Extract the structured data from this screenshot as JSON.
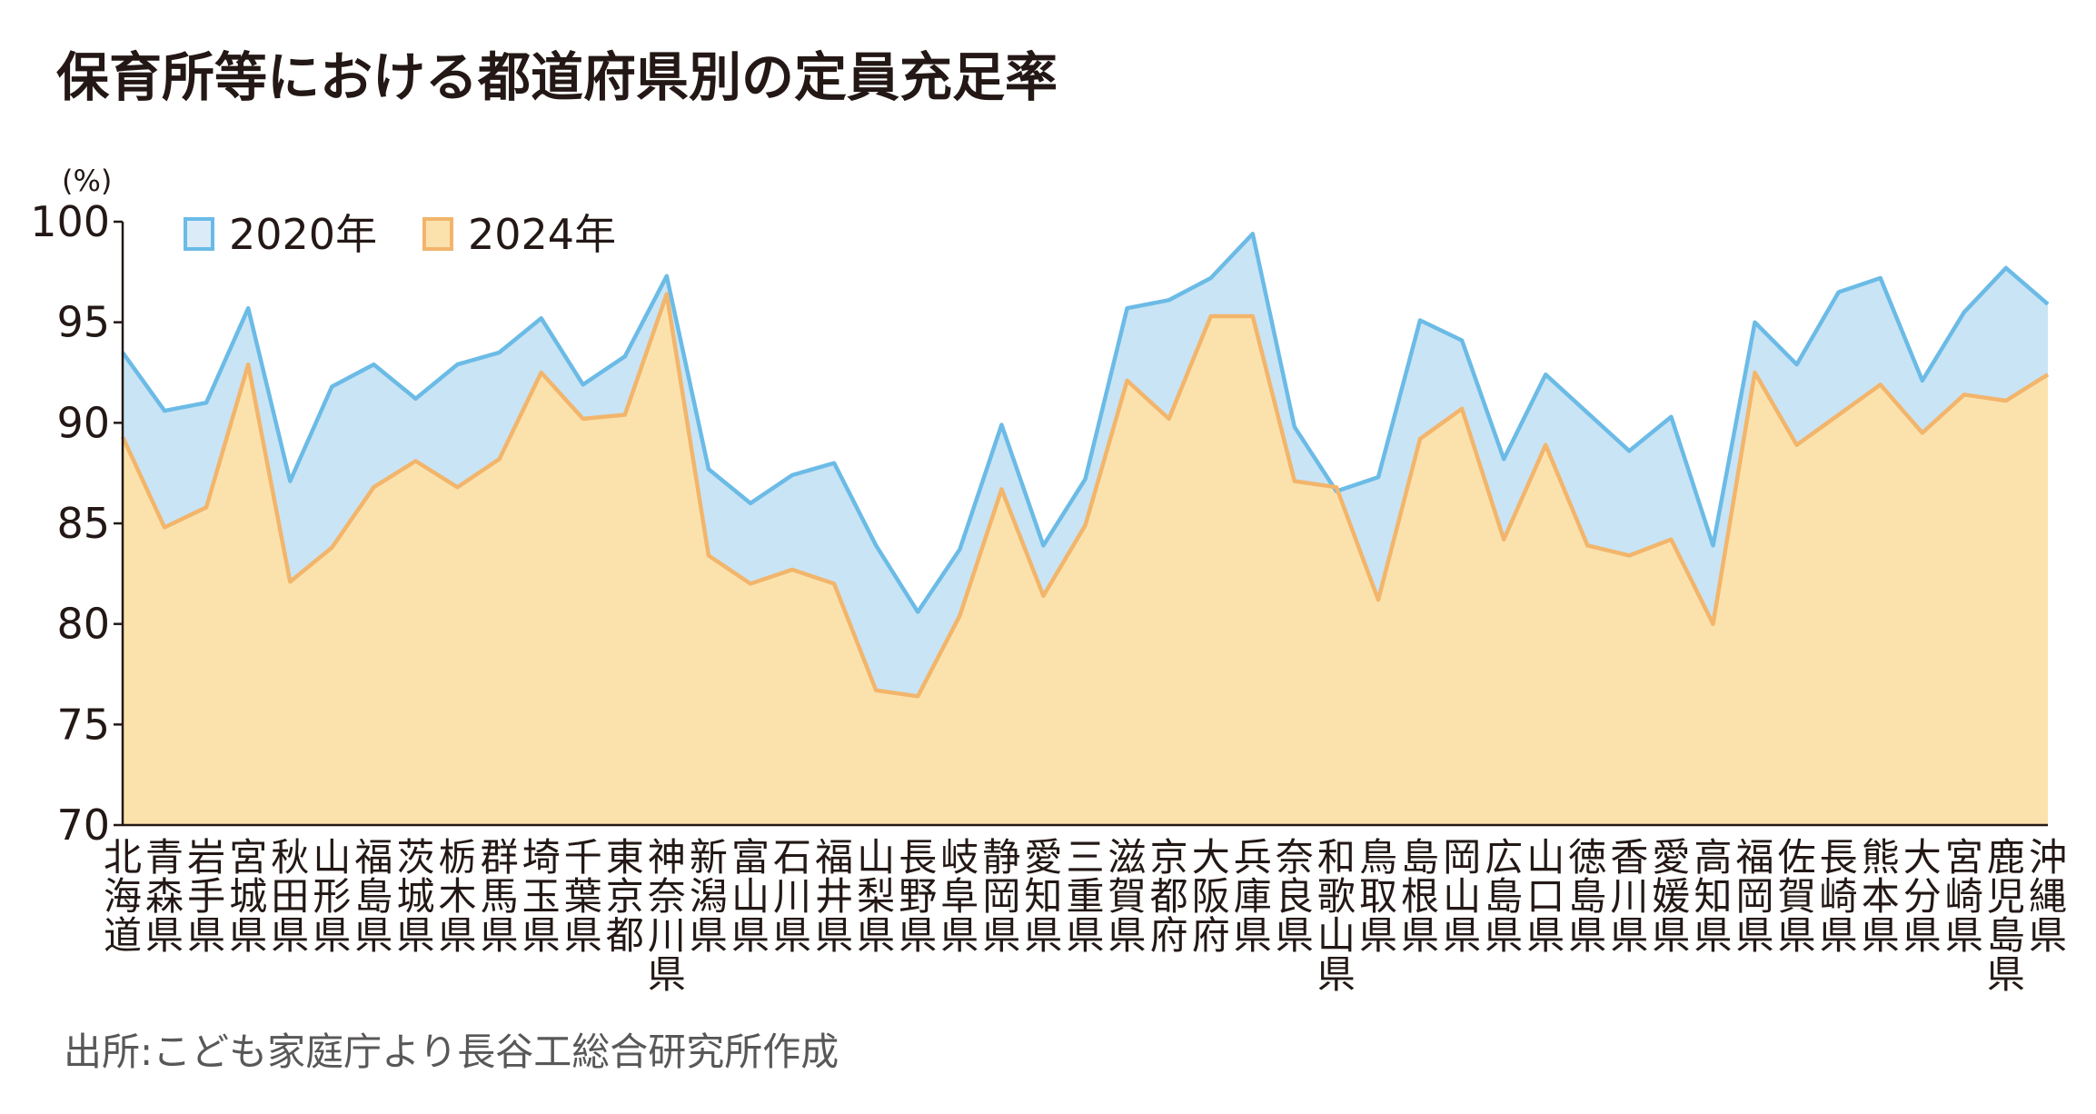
{
  "chart_data": {
    "type": "area",
    "title": "保育所等における都道府県別の定員充足率",
    "ylabel": "(%)",
    "ylim": [
      70,
      100
    ],
    "yticks": [
      70,
      75,
      80,
      85,
      90,
      95,
      100
    ],
    "source": "出所:こども家庭庁より長谷工総合研究所作成",
    "legend_position": "top-left",
    "categories": [
      "北海道",
      "青森県",
      "岩手県",
      "宮城県",
      "秋田県",
      "山形県",
      "福島県",
      "茨城県",
      "栃木県",
      "群馬県",
      "埼玉県",
      "千葉県",
      "東京都",
      "神奈川県",
      "新潟県",
      "富山県",
      "石川県",
      "福井県",
      "山梨県",
      "長野県",
      "岐阜県",
      "静岡県",
      "愛知県",
      "三重県",
      "滋賀県",
      "京都府",
      "大阪府",
      "兵庫県",
      "奈良県",
      "和歌山県",
      "鳥取県",
      "島根県",
      "岡山県",
      "広島県",
      "山口県",
      "徳島県",
      "香川県",
      "愛媛県",
      "高知県",
      "福岡県",
      "佐賀県",
      "長崎県",
      "熊本県",
      "大分県",
      "宮崎県",
      "鹿児島県",
      "沖縄県"
    ],
    "series": [
      {
        "name": "2020年",
        "line_color": "#6bbbe6",
        "fill_color": "#c9e4f5",
        "values": [
          93.5,
          90.6,
          91.0,
          95.7,
          87.1,
          91.8,
          92.9,
          91.2,
          92.9,
          93.5,
          95.2,
          91.9,
          93.3,
          97.3,
          87.7,
          86.0,
          87.4,
          88.0,
          83.9,
          80.6,
          83.7,
          89.9,
          83.9,
          87.2,
          95.7,
          96.1,
          97.2,
          99.4,
          89.8,
          86.6,
          87.3,
          95.1,
          94.1,
          88.2,
          92.4,
          90.5,
          88.6,
          90.3,
          83.9,
          95.0,
          92.9,
          96.5,
          97.2,
          92.1,
          95.5,
          97.7,
          95.9
        ]
      },
      {
        "name": "2024年",
        "line_color": "#f2b56b",
        "fill_color": "#fbe2ad",
        "values": [
          89.3,
          84.8,
          85.8,
          92.9,
          82.1,
          83.8,
          86.8,
          88.1,
          86.8,
          88.2,
          92.5,
          90.2,
          90.4,
          96.4,
          83.4,
          82.0,
          82.7,
          82.0,
          76.7,
          76.4,
          80.4,
          86.7,
          81.4,
          84.9,
          92.1,
          90.2,
          95.3,
          95.3,
          87.1,
          86.8,
          81.2,
          89.2,
          90.7,
          84.2,
          88.9,
          83.9,
          83.4,
          84.2,
          80.0,
          92.5,
          88.9,
          90.4,
          91.9,
          89.5,
          91.4,
          91.1,
          92.4
        ]
      }
    ]
  }
}
